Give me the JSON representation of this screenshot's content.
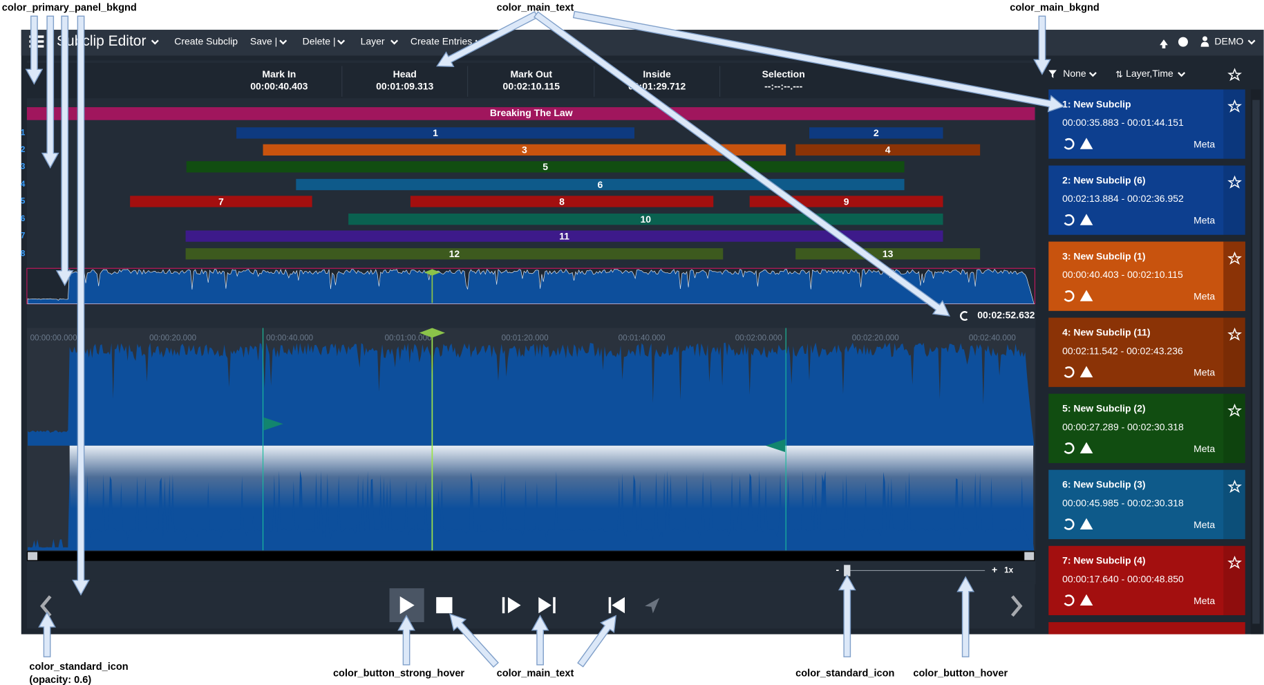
{
  "annotations": [
    "color_primary_panel_bkgnd",
    "color_main_text",
    "color_main_bkgnd",
    "color_standard_icon",
    "(opacity: 0.6)",
    "color_button_strong_hover",
    "color_main_text",
    "color_standard_icon",
    "color_button_hover"
  ],
  "menu": {
    "title": "Subclip Editor",
    "items": [
      "Create Subclip",
      "Save |",
      "Delete |",
      "Layer",
      "Create Entries"
    ],
    "user": "DEMO"
  },
  "timecodes": [
    {
      "label": "Mark In",
      "value": "00:00:40.403"
    },
    {
      "label": "Head",
      "value": "00:01:09.313"
    },
    {
      "label": "Mark Out",
      "value": "00:02:10.115"
    },
    {
      "label": "Inside",
      "value": "00:01:29.712"
    },
    {
      "label": "Selection",
      "value": "--:--:--.---"
    }
  ],
  "track_title": "Breaking The Law",
  "layers": [
    "1",
    "2",
    "3",
    "4",
    "5",
    "6",
    "7",
    "8"
  ],
  "clips": [
    "1",
    "2",
    "3",
    "4",
    "5",
    "6",
    "7",
    "8",
    "9",
    "10",
    "11",
    "12",
    "13"
  ],
  "duration": "00:02:52.632",
  "ruler": [
    "00:00:00.000",
    "00:00:20.000",
    "00:00:40.000",
    "00:01:00.000",
    "00:01:20.000",
    "00:01:40.000",
    "00:02:00.000",
    "00:02:20.000",
    "00:02:40.000"
  ],
  "zoom": {
    "minus": "-",
    "plus": "+",
    "rate": "1x"
  },
  "sort": {
    "filter": "None",
    "order": "Layer,Time"
  },
  "list": [
    {
      "title": "1: New Subclip",
      "range": "00:00:35.883 - 00:01:44.151",
      "meta": "Meta"
    },
    {
      "title": "2: New Subclip (6)",
      "range": "00:02:13.884 - 00:02:36.952",
      "meta": "Meta"
    },
    {
      "title": "3: New Subclip (1)",
      "range": "00:00:40.403 - 00:02:10.115",
      "meta": "Meta"
    },
    {
      "title": "4: New Subclip (11)",
      "range": "00:02:11.542 - 00:02:43.236",
      "meta": "Meta"
    },
    {
      "title": "5: New Subclip (2)",
      "range": "00:00:27.289 - 00:02:30.318",
      "meta": "Meta"
    },
    {
      "title": "6: New Subclip (3)",
      "range": "00:00:45.985 - 00:02:30.318",
      "meta": "Meta"
    },
    {
      "title": "7: New Subclip (4)",
      "range": "00:00:17.640 - 00:00:48.850",
      "meta": "Meta"
    }
  ]
}
